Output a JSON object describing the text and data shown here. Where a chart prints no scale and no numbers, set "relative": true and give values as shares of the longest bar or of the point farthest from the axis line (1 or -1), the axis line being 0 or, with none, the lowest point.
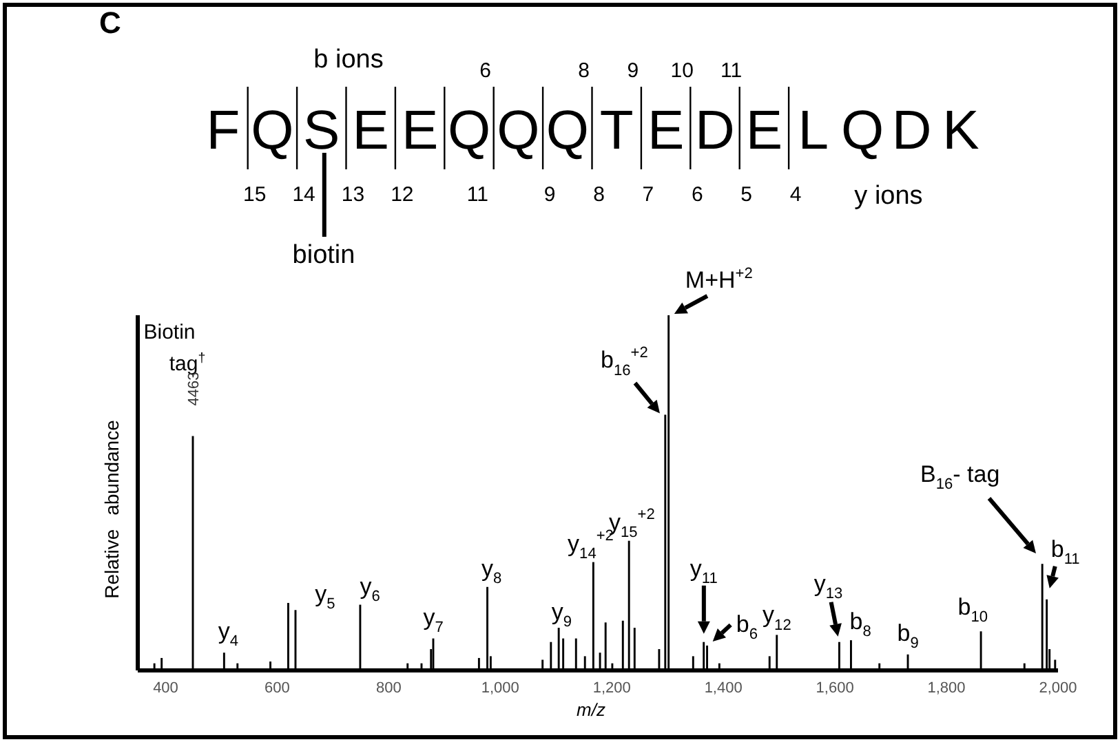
{
  "chart_data": {
    "type": "bar",
    "relative": true,
    "xlabel": "m/z",
    "ylabel": "Relative abundance",
    "xlim": [
      350,
      2000
    ],
    "xticks": [
      400,
      600,
      800,
      {
        "value": 1000,
        "label": "1,000"
      },
      {
        "value": 1200,
        "label": "1,200"
      },
      {
        "value": 1400,
        "label": "1,400"
      },
      {
        "value": 1600,
        "label": "1,600"
      },
      {
        "value": 1800,
        "label": "1,800"
      },
      {
        "value": 2000,
        "label": "2,000"
      }
    ],
    "x": [
      380,
      393,
      449,
      505,
      529,
      588,
      620,
      633,
      749,
      834,
      859,
      876,
      880,
      962,
      977,
      983,
      1076,
      1091,
      1105,
      1113,
      1136,
      1152,
      1167,
      1179,
      1189,
      1201,
      1220,
      1231,
      1241,
      1285,
      1296,
      1302,
      1346,
      1365,
      1371,
      1393,
      1483,
      1496,
      1608,
      1629,
      1680,
      1731,
      1862,
      1940,
      1972,
      1980,
      1985,
      1995
    ],
    "values": [
      0.02,
      0.035,
      0.66,
      0.05,
      0.02,
      0.025,
      0.19,
      0.17,
      0.185,
      0.02,
      0.02,
      0.06,
      0.09,
      0.035,
      0.235,
      0.04,
      0.03,
      0.08,
      0.12,
      0.09,
      0.09,
      0.04,
      0.305,
      0.05,
      0.135,
      0.02,
      0.14,
      0.365,
      0.12,
      0.06,
      0.72,
      1,
      0.04,
      0.08,
      0.07,
      0.02,
      0.04,
      0.1,
      0.08,
      0.085,
      0.02,
      0.045,
      0.11,
      0.02,
      0.3,
      0.2,
      0.06,
      0.03
    ],
    "color": "#000000",
    "annotations": [
      "C",
      "b ions",
      "FQSEEQQQTEDELQDK",
      "6",
      "8",
      "9",
      "10",
      "11",
      "15",
      "14",
      "13",
      "12",
      "11",
      "9",
      "8",
      "7",
      "6",
      "5",
      "4",
      "y ions",
      "biotin",
      "Biotin tag$^{†}$",
      "B$_{16}$- tag",
      {
        "text": "4463",
        "x": 449,
        "y": 0.66
      },
      {
        "text": "y$_{4}$",
        "x": 505,
        "y": 0.05
      },
      {
        "text": "y$_{5}$",
        "x": 633,
        "y": 0.17
      },
      {
        "text": "y$_{6}$",
        "x": 749,
        "y": 0.185
      },
      {
        "text": "y$_{7}$",
        "x": 880,
        "y": 0.09
      },
      {
        "text": "y$_{8}$",
        "x": 977,
        "y": 0.235
      },
      {
        "text": "y$_{9}$",
        "x": 1105,
        "y": 0.12
      },
      {
        "text": "y$_{14}$$^{+2}$",
        "x": 1167,
        "y": 0.305
      },
      {
        "text": "y$_{15}$$^{+2}$",
        "x": 1231,
        "y": 0.365
      },
      {
        "text": "M+H$^{+2}$",
        "x": 1302,
        "y": 1
      },
      {
        "text": "b$_{16}$$^{+2}$",
        "x": 1296,
        "y": 0.72
      },
      {
        "text": "y$_{11}$",
        "x": 1365,
        "y": 0.08
      },
      {
        "text": "b$_{6}$",
        "x": 1371,
        "y": 0.07
      },
      {
        "text": "y$_{12}$",
        "x": 1496,
        "y": 0.1
      },
      {
        "text": "y$_{13}$",
        "x": 1608,
        "y": 0.08
      },
      {
        "text": "b$_{8}$",
        "x": 1629,
        "y": 0.085
      },
      {
        "text": "b$_{9}$",
        "x": 1731,
        "y": 0.045
      },
      {
        "text": "b$_{10}$",
        "x": 1862,
        "y": 0.11
      },
      {
        "text": "b$_{11}$",
        "x": 1980,
        "y": 0.2
      }
    ]
  }
}
